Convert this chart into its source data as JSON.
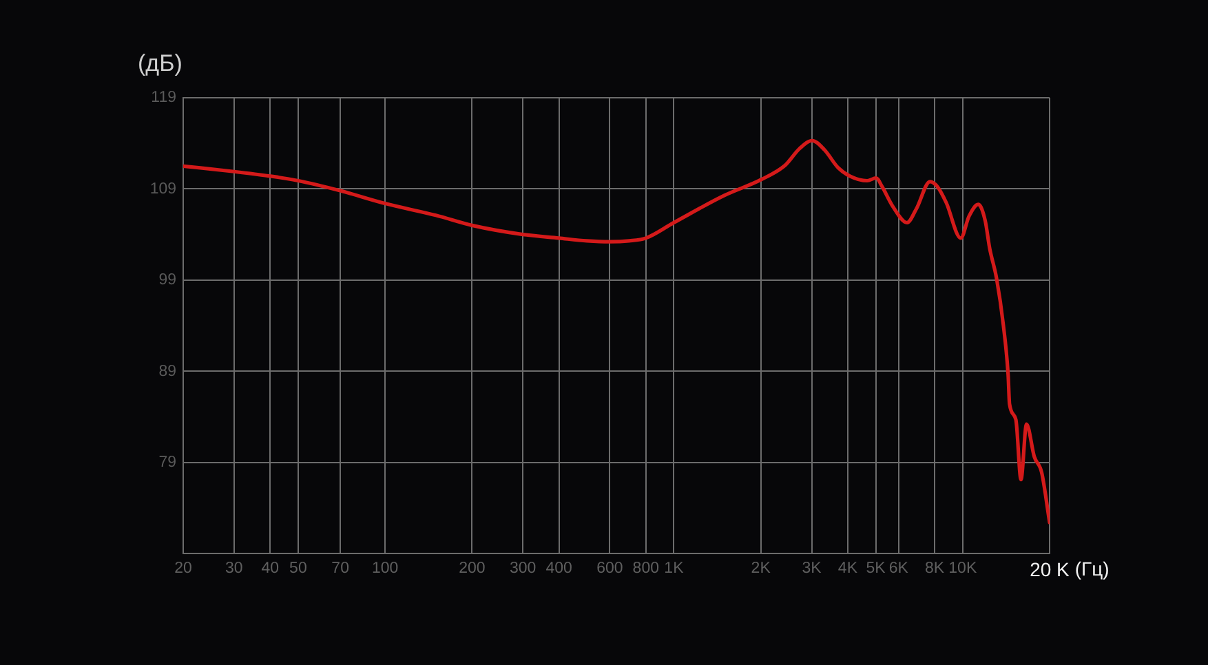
{
  "chart_data": {
    "type": "line",
    "ylabel": "(дБ)",
    "xlabel": "(Гц)",
    "x": [
      20,
      30,
      40,
      50,
      70,
      100,
      150,
      200,
      300,
      400,
      500,
      600,
      700,
      800,
      1000,
      1500,
      2000,
      2430,
      2720,
      3010,
      3320,
      3710,
      4070,
      4670,
      5020,
      5250,
      5750,
      6420,
      6910,
      7710,
      8150,
      8770,
      9850,
      10520,
      11330,
      11970,
      12400,
      13100,
      13840,
      14370,
      14530,
      15280,
      15920,
      16640,
      17710,
      18770,
      20000
    ],
    "series": [
      {
        "color": "#d41a1a",
        "values": [
          111.5,
          110.9,
          110.4,
          109.9,
          108.8,
          107.4,
          106.1,
          105.0,
          104.0,
          103.6,
          103.3,
          103.2,
          103.3,
          103.6,
          105.3,
          108.3,
          110.0,
          111.6,
          113.4,
          114.3,
          113.3,
          111.3,
          110.4,
          109.9,
          110.2,
          109.3,
          107.0,
          105.3,
          106.8,
          109.8,
          109.3,
          107.5,
          103.6,
          106.0,
          107.3,
          105.5,
          102.5,
          99.2,
          94.0,
          88.6,
          85.4,
          83.7,
          77.1,
          83.2,
          79.6,
          77.9,
          72.4
        ]
      }
    ],
    "log": "x",
    "xlim": [
      20,
      20000
    ],
    "xticks": [
      20,
      30,
      40,
      50,
      70,
      100,
      200,
      300,
      400,
      600,
      800,
      {
        "value": 1000,
        "label": "1K"
      },
      {
        "value": 2000,
        "label": "2K"
      },
      {
        "value": 3000,
        "label": "3K"
      },
      {
        "value": 4000,
        "label": "4K"
      },
      {
        "value": 5000,
        "label": "5K"
      },
      {
        "value": 6000,
        "label": "6K"
      },
      {
        "value": 8000,
        "label": "8K"
      },
      {
        "value": 10000,
        "label": "10K"
      },
      {
        "value": 20000,
        "label": "20 K"
      }
    ],
    "ylim": [
      69,
      119
    ],
    "yticks": [
      79,
      89,
      99,
      109,
      119
    ],
    "grid": true,
    "marker": "none",
    "line_style": "solid"
  }
}
